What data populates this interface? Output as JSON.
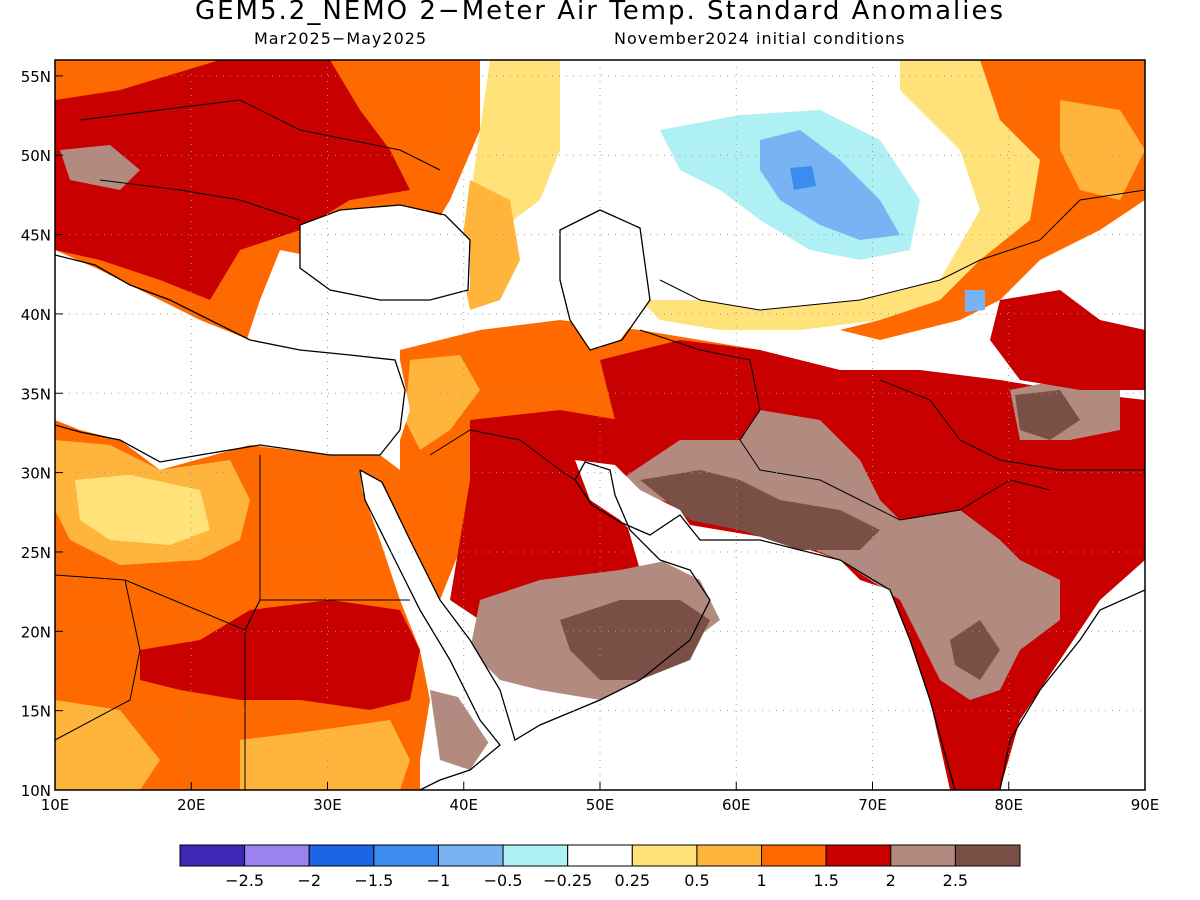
{
  "title": "GEM5.2_NEMO 2−Meter Air Temp. Standard Anomalies",
  "subtitle_left": "Mar2025−May2025",
  "subtitle_right": "November2024 initial conditions",
  "map": {
    "lon_range": [
      10,
      90
    ],
    "lat_range": [
      10,
      56
    ],
    "x_ticks": [
      "10E",
      "20E",
      "30E",
      "40E",
      "50E",
      "60E",
      "70E",
      "80E",
      "90E"
    ],
    "y_ticks": [
      "10N",
      "15N",
      "20N",
      "25N",
      "30N",
      "35N",
      "40N",
      "45N",
      "50N",
      "55N"
    ],
    "grid": "dotted",
    "regions": [
      {
        "name": "anomaly-zone",
        "level": "1 to 1.5",
        "color": "#ff6a00"
      },
      {
        "name": "anomaly-zone",
        "level": "1.5 to 2",
        "color": "#c90000"
      },
      {
        "name": "anomaly-zone",
        "level": "2 to 2.5",
        "color": "#b38a7f"
      },
      {
        "name": "anomaly-zone",
        "level": "> 2.5",
        "color": "#7a5046"
      },
      {
        "name": "anomaly-zone",
        "level": "0.5 to 1",
        "color": "#ffb43c"
      },
      {
        "name": "anomaly-zone",
        "level": "0.25 to 0.5",
        "color": "#ffe27a"
      },
      {
        "name": "anomaly-zone",
        "level": "-0.5 to -0.25",
        "color": "#aef0f4"
      },
      {
        "name": "anomaly-zone",
        "level": "-1 to -0.5",
        "color": "#78b4f4"
      },
      {
        "name": "anomaly-zone",
        "level": "-1.5 to -1",
        "color": "#3c8cf0"
      }
    ]
  },
  "colorbar": {
    "colors": [
      "#3c28b4",
      "#9a82f0",
      "#1e64e6",
      "#3c8cf0",
      "#78b4f4",
      "#aef0f4",
      "#ffffff",
      "#ffe27a",
      "#ffb43c",
      "#ff6a00",
      "#c90000",
      "#b38a7f",
      "#7a5046"
    ],
    "labels": [
      "−2.5",
      "−2",
      "−1.5",
      "−1",
      "−0.5",
      "−0.25",
      "0.25",
      "0.5",
      "1",
      "1.5",
      "2",
      "2.5"
    ]
  }
}
